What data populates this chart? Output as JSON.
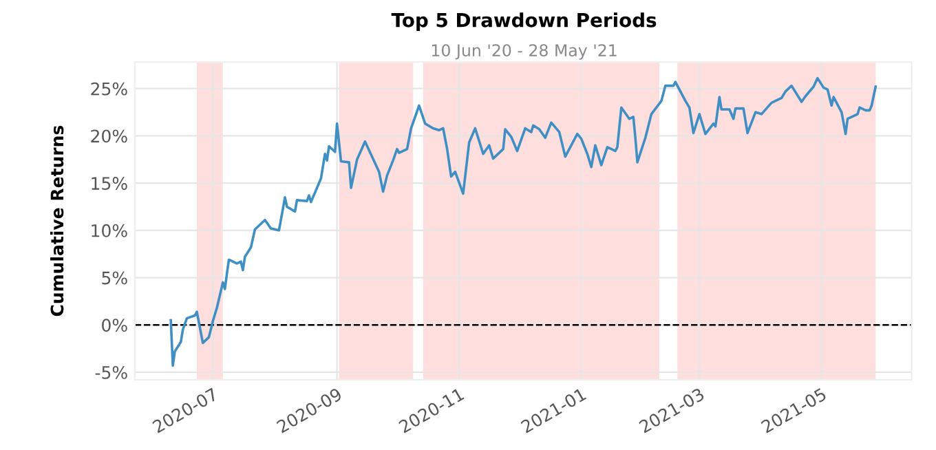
{
  "chart_data": {
    "type": "line",
    "title": "Top 5 Drawdown Periods",
    "subtitle": "10 Jun '20 - 28 May '21",
    "ylabel": "Cumulative Returns",
    "x": [
      "2020-06-10",
      "2020-06-11",
      "2020-06-12",
      "2020-06-15",
      "2020-06-16",
      "2020-06-18",
      "2020-06-22",
      "2020-06-23",
      "2020-06-26",
      "2020-06-29",
      "2020-07-01",
      "2020-07-03",
      "2020-07-06",
      "2020-07-07",
      "2020-07-08",
      "2020-07-09",
      "2020-07-13",
      "2020-07-15",
      "2020-07-16",
      "2020-07-17",
      "2020-07-20",
      "2020-07-22",
      "2020-07-23",
      "2020-07-27",
      "2020-07-30",
      "2020-08-03",
      "2020-08-05",
      "2020-08-06",
      "2020-08-07",
      "2020-08-11",
      "2020-08-12",
      "2020-08-17",
      "2020-08-18",
      "2020-08-19",
      "2020-08-24",
      "2020-08-26",
      "2020-08-27",
      "2020-08-28",
      "2020-08-31",
      "2020-09-01",
      "2020-09-03",
      "2020-09-07",
      "2020-09-08",
      "2020-09-11",
      "2020-09-15",
      "2020-09-22",
      "2020-09-24",
      "2020-09-26",
      "2020-09-29",
      "2020-10-01",
      "2020-10-02",
      "2020-10-06",
      "2020-10-08",
      "2020-10-12",
      "2020-10-15",
      "2020-10-19",
      "2020-10-22",
      "2020-10-24",
      "2020-10-26",
      "2020-10-28",
      "2020-10-30",
      "2020-11-03",
      "2020-11-06",
      "2020-11-09",
      "2020-11-13",
      "2020-11-16",
      "2020-11-18",
      "2020-11-23",
      "2020-11-24",
      "2020-11-27",
      "2020-11-30",
      "2020-12-04",
      "2020-12-07",
      "2020-12-08",
      "2020-12-11",
      "2020-12-14",
      "2020-12-17",
      "2020-12-21",
      "2020-12-24",
      "2020-12-30",
      "2021-01-01",
      "2021-01-04",
      "2021-01-06",
      "2021-01-08",
      "2021-01-11",
      "2021-01-14",
      "2021-01-18",
      "2021-01-19",
      "2021-01-21",
      "2021-01-25",
      "2021-01-27",
      "2021-01-28",
      "2021-01-29",
      "2021-02-02",
      "2021-02-05",
      "2021-02-10",
      "2021-02-12",
      "2021-02-16",
      "2021-02-17",
      "2021-02-22",
      "2021-02-24",
      "2021-02-26",
      "2021-03-01",
      "2021-03-04",
      "2021-03-08",
      "2021-03-09",
      "2021-03-11",
      "2021-03-12",
      "2021-03-16",
      "2021-03-18",
      "2021-03-19",
      "2021-03-23",
      "2021-03-25",
      "2021-03-29",
      "2021-04-01",
      "2021-04-06",
      "2021-04-11",
      "2021-04-13",
      "2021-04-16",
      "2021-04-21",
      "2021-04-23",
      "2021-04-27",
      "2021-04-29",
      "2021-05-02",
      "2021-05-04",
      "2021-05-06",
      "2021-05-07",
      "2021-05-11",
      "2021-05-13",
      "2021-05-14",
      "2021-05-19",
      "2021-05-20",
      "2021-05-23",
      "2021-05-25",
      "2021-05-26",
      "2021-05-28"
    ],
    "series": [
      {
        "color": "#3f8fc4",
        "values": [
          0.5,
          -4.3,
          -2.8,
          -1.8,
          -0.5,
          0.7,
          1.0,
          1.4,
          -1.9,
          -1.3,
          0.4,
          1.8,
          4.5,
          3.8,
          5.4,
          6.9,
          6.5,
          6.7,
          5.8,
          7.2,
          8.2,
          10.1,
          10.3,
          11.1,
          10.2,
          10.0,
          12.3,
          13.5,
          12.5,
          12.0,
          13.2,
          13.1,
          13.7,
          13.0,
          15.5,
          18.1,
          17.4,
          18.9,
          18.3,
          21.3,
          17.3,
          17.2,
          14.5,
          17.5,
          19.4,
          16.2,
          14.1,
          15.8,
          17.4,
          18.6,
          18.2,
          18.6,
          20.8,
          23.2,
          21.3,
          20.8,
          20.6,
          20.8,
          18.6,
          15.7,
          16.2,
          13.9,
          19.3,
          20.8,
          18.1,
          19.0,
          17.6,
          18.6,
          20.7,
          19.9,
          18.4,
          20.8,
          20.4,
          21.1,
          20.7,
          19.8,
          21.4,
          20.4,
          17.8,
          20.2,
          19.7,
          18.1,
          16.7,
          19.0,
          16.9,
          18.8,
          18.4,
          18.8,
          23.0,
          21.8,
          22.0,
          19.8,
          17.2,
          19.8,
          22.3,
          23.7,
          25.3,
          25.3,
          25.7,
          23.7,
          23.0,
          20.3,
          22.3,
          20.2,
          21.3,
          21.0,
          24.1,
          22.8,
          22.8,
          21.8,
          22.9,
          22.9,
          20.3,
          22.5,
          22.3,
          23.5,
          24.0,
          24.7,
          25.3,
          23.6,
          24.2,
          25.2,
          26.1,
          25.1,
          24.9,
          23.2,
          24.1,
          22.5,
          20.2,
          21.8,
          22.3,
          23.0,
          22.7,
          22.7,
          23.2,
          25.2
        ]
      }
    ],
    "xlim": [
      "2020-05-23",
      "2021-06-15"
    ],
    "xticks": [
      "2020-07",
      "2020-09",
      "2020-11",
      "2021-01",
      "2021-03",
      "2021-05"
    ],
    "ylim": [
      -5.8,
      27.8
    ],
    "yticks": [
      {
        "value": -5,
        "label": "-5%"
      },
      {
        "value": 0,
        "label": "0%"
      },
      {
        "value": 5,
        "label": "5%"
      },
      {
        "value": 10,
        "label": "10%"
      },
      {
        "value": 15,
        "label": "15%"
      },
      {
        "value": 20,
        "label": "20%"
      },
      {
        "value": 25,
        "label": "25%"
      }
    ],
    "ref_lines": [
      {
        "axis": "y",
        "value": 0,
        "color": "#000000",
        "line_style": "dashed"
      }
    ],
    "bands": [
      {
        "axis": "x",
        "from": "2020-06-23",
        "to": "2020-07-06",
        "color": "#ffdede"
      },
      {
        "axis": "x",
        "from": "2020-09-02",
        "to": "2020-10-09",
        "color": "#ffdede"
      },
      {
        "axis": "x",
        "from": "2020-10-14",
        "to": "2021-02-09",
        "color": "#ffdede"
      },
      {
        "axis": "x",
        "from": "2021-02-18",
        "to": "2021-05-28",
        "color": "#ffdede"
      }
    ],
    "grid": true,
    "line_style": "solid",
    "marker": "none"
  }
}
